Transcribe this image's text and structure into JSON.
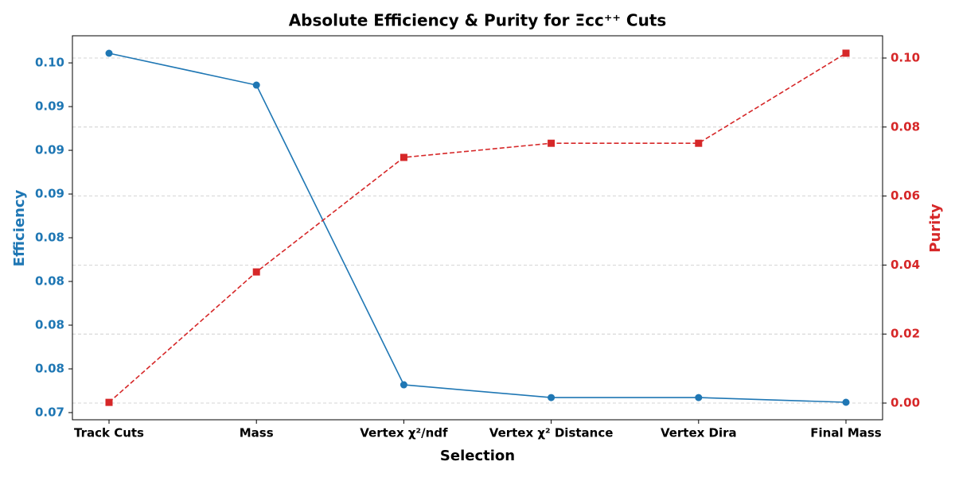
{
  "chart_data": {
    "type": "line",
    "title": "Absolute Efficiency & Purity for Ξcc⁺⁺ Cuts",
    "x_label": "Selection",
    "y_label": "Efficiency",
    "y2_label": "Purity",
    "categories": [
      "Track Cuts",
      "Mass",
      "Vertex χ²/ndf",
      "Vertex χ² Distance",
      "Vertex Dira",
      "Final Mass"
    ],
    "series": [
      {
        "name": "Efficiency",
        "color": "#1f77b4",
        "marker": "circle",
        "dash": "solid",
        "values": [
          0.09555,
          0.09373,
          0.07659,
          0.07586,
          0.07586,
          0.07559
        ]
      },
      {
        "name": "Purity",
        "color": "#d62728",
        "marker": "square",
        "dash": "dashed",
        "axis": "y2",
        "values": [
          0.0002,
          0.038,
          0.0712,
          0.0753,
          0.0753,
          0.1014
        ]
      }
    ],
    "ylim": [
      0.07459,
      0.09655
    ],
    "yticks": [
      {
        "value": 0.075,
        "label": "0.07"
      },
      {
        "value": 0.0775,
        "label": "0.08"
      },
      {
        "value": 0.08,
        "label": "0.08"
      },
      {
        "value": 0.0825,
        "label": "0.08"
      },
      {
        "value": 0.085,
        "label": "0.08"
      },
      {
        "value": 0.0875,
        "label": "0.09"
      },
      {
        "value": 0.09,
        "label": "0.09"
      },
      {
        "value": 0.0925,
        "label": "0.09"
      },
      {
        "value": 0.095,
        "label": "0.10"
      }
    ],
    "y2lim": [
      -0.00484,
      0.10645
    ],
    "y2ticks": [
      {
        "value": 0,
        "label": "0.00"
      },
      {
        "value": 0.02,
        "label": "0.02"
      },
      {
        "value": 0.04,
        "label": "0.04"
      },
      {
        "value": 0.06,
        "label": "0.06"
      },
      {
        "value": 0.08,
        "label": "0.08"
      },
      {
        "value": 0.1,
        "label": "0.10"
      }
    ],
    "grid": true
  }
}
